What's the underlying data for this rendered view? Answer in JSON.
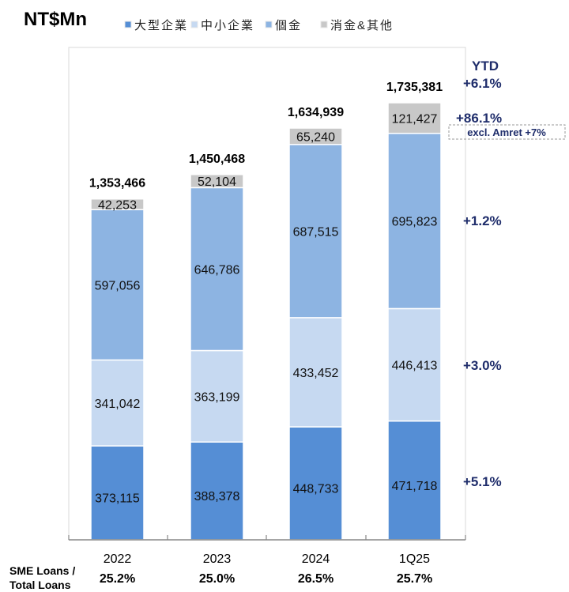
{
  "chart_data": {
    "type": "bar",
    "stacked": true,
    "unit_title": "NT$Mn",
    "categories": [
      "2022",
      "2023",
      "2024",
      "1Q25"
    ],
    "series": [
      {
        "name": "大型企業",
        "color": "#558ed5",
        "values": [
          373115,
          388378,
          448733,
          471718
        ],
        "labels": [
          "373,115",
          "388,378",
          "448,733",
          "471,718"
        ]
      },
      {
        "name": "中小企業",
        "color": "#c6d9f1",
        "values": [
          341042,
          363199,
          433452,
          446413
        ],
        "labels": [
          "341,042",
          "363,199",
          "433,452",
          "446,413"
        ]
      },
      {
        "name": "個金",
        "color": "#8db4e2",
        "values": [
          597056,
          646786,
          687515,
          695823
        ],
        "labels": [
          "597,056",
          "646,786",
          "687,515",
          "695,823"
        ]
      },
      {
        "name": "消金&其他",
        "color": "#c8c8c8",
        "values": [
          42253,
          52104,
          65240,
          121427
        ],
        "labels": [
          "42,253",
          "52,104",
          "65,240",
          "121,427"
        ]
      }
    ],
    "totals": [
      "1,353,466",
      "1,450,468",
      "1,634,939",
      "1,735,381"
    ],
    "ytd": {
      "header": "YTD",
      "total": "+6.1%",
      "series_changes": [
        "+5.1%",
        "+3.0%",
        "+1.2%",
        "+86.1%"
      ],
      "note": "excl. Amret +7%"
    },
    "ratio": {
      "label_line1": "SME Loans /",
      "label_line2": "Total Loans",
      "values": [
        "25.2%",
        "25.0%",
        "26.5%",
        "25.7%"
      ]
    },
    "ylim": [
      0,
      1950000
    ],
    "legend_position": "top",
    "colors": {
      "annotation": "#1f2d6b",
      "text": "#000000"
    }
  }
}
